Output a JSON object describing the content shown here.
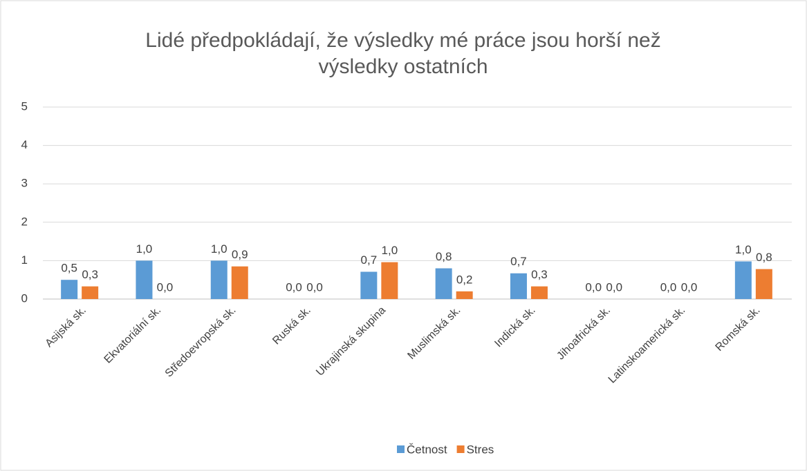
{
  "chart_data": {
    "type": "bar",
    "title": "Lidé předpokládají, že výsledky mé práce jsou horší než výsledky ostatních",
    "categories": [
      "Asijská sk.",
      "Ekvatoriální sk.",
      "Středoevropská sk.",
      "Ruská sk.",
      "Ukrajinská skupina",
      "Muslimská sk.",
      "Indická sk.",
      "Jihoafrická sk.",
      "Latinskoamerická sk.",
      "Romská sk."
    ],
    "series": [
      {
        "name": "Četnost",
        "color": "#5b9bd5",
        "values": [
          0.5,
          1.0,
          1.0,
          0,
          0.71,
          0.8,
          0.67,
          0,
          0,
          0.98
        ],
        "value_labels": [
          "0,5",
          "1,0",
          "1,0",
          "0,0",
          "0,7",
          "0,8",
          "0,7",
          "0,0",
          "0,0",
          "1,0"
        ]
      },
      {
        "name": "Stres",
        "color": "#ed7d31",
        "values": [
          0.33,
          0,
          0.85,
          0,
          0.96,
          0.2,
          0.33,
          0,
          0,
          0.78
        ],
        "value_labels": [
          "0,3",
          "0,0",
          "0,9",
          "0,0",
          "1,0",
          "0,2",
          "0,3",
          "0,0",
          "0,0",
          "0,8"
        ]
      }
    ],
    "ylim": [
      0,
      5
    ],
    "yticks": [
      0,
      1,
      2,
      3,
      4,
      5
    ],
    "grid": true,
    "legend": "bottom"
  }
}
